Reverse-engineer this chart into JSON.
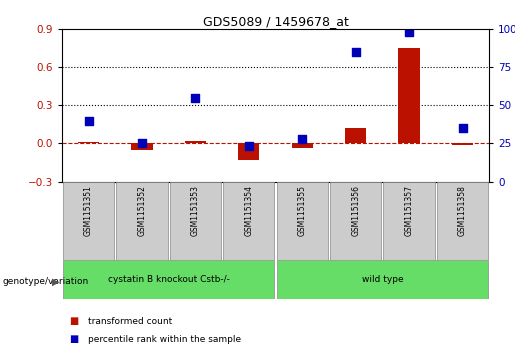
{
  "title": "GDS5089 / 1459678_at",
  "samples": [
    "GSM1151351",
    "GSM1151352",
    "GSM1151353",
    "GSM1151354",
    "GSM1151355",
    "GSM1151356",
    "GSM1151357",
    "GSM1151358"
  ],
  "transformed_count": [
    0.01,
    -0.05,
    0.02,
    -0.13,
    -0.04,
    0.12,
    0.75,
    -0.01
  ],
  "percentile_rank": [
    40,
    25,
    55,
    23,
    28,
    85,
    98,
    35
  ],
  "groups": [
    {
      "label": "cystatin B knockout Cstb-/-",
      "start": 0,
      "end": 4,
      "color": "#66dd66"
    },
    {
      "label": "wild type",
      "start": 4,
      "end": 8,
      "color": "#66dd66"
    }
  ],
  "ylim_left": [
    -0.3,
    0.9
  ],
  "ylim_right": [
    0,
    100
  ],
  "yticks_left": [
    -0.3,
    0.0,
    0.3,
    0.6,
    0.9
  ],
  "yticks_right": [
    0,
    25,
    50,
    75,
    100
  ],
  "hlines": [
    0.3,
    0.6
  ],
  "bar_color": "#bb1100",
  "dot_color": "#0000bb",
  "bar_width": 0.4,
  "dot_size": 40,
  "legend_items": [
    "transformed count",
    "percentile rank within the sample"
  ],
  "legend_colors": [
    "#bb1100",
    "#0000bb"
  ],
  "ylabel_left_color": "#bb1100",
  "ylabel_right_color": "#0000bb",
  "group_row_label": "genotype/variation",
  "sample_box_color": "#cccccc",
  "title_fontsize": 9
}
